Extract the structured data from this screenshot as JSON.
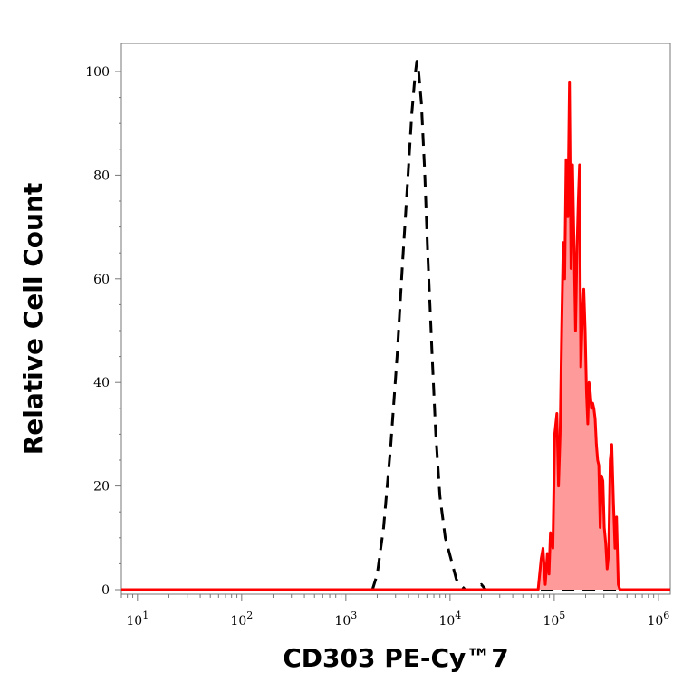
{
  "chart_data": {
    "type": "area",
    "xlabel": "CD303 PE-Cy™7",
    "ylabel": "Relative Cell Count",
    "x_scale": "log",
    "xlim": [
      7,
      1300000
    ],
    "ylim": [
      0,
      103
    ],
    "x_ticks": [
      {
        "value": 10,
        "base": "10",
        "exp": "1"
      },
      {
        "value": 100,
        "base": "10",
        "exp": "2"
      },
      {
        "value": 1000,
        "base": "10",
        "exp": "3"
      },
      {
        "value": 10000,
        "base": "10",
        "exp": "4"
      },
      {
        "value": 100000,
        "base": "10",
        "exp": "5"
      },
      {
        "value": 1000000,
        "base": "10",
        "exp": "6"
      }
    ],
    "y_ticks": [
      0,
      20,
      40,
      60,
      80,
      100
    ],
    "grid": false,
    "legend": "none",
    "series": [
      {
        "style": "dashed",
        "color": "#000000",
        "fill": "none",
        "x": [
          7,
          1800,
          2000,
          2300,
          2700,
          3100,
          3500,
          3900,
          4300,
          4600,
          4800,
          5000,
          5300,
          5700,
          6100,
          6700,
          7300,
          8000,
          9000,
          10500,
          11500,
          12500,
          14000,
          17000,
          20000,
          22000,
          1300000
        ],
        "y": [
          0,
          0,
          3,
          12,
          28,
          45,
          63,
          78,
          92,
          99,
          102,
          100,
          94,
          81,
          65,
          46,
          30,
          18,
          10,
          5,
          2,
          1,
          0,
          0,
          1,
          0,
          0
        ]
      },
      {
        "style": "solid",
        "color": "#ff0000",
        "fill": "#ff9a9a",
        "x": [
          7,
          70000,
          75000,
          78000,
          82000,
          86000,
          89000,
          92000,
          97000,
          101000,
          106000,
          110000,
          114000,
          118000,
          122000,
          126000,
          130000,
          135000,
          140000,
          145000,
          150000,
          155000,
          160000,
          165000,
          170000,
          175000,
          180000,
          186000,
          192000,
          198000,
          204000,
          210000,
          216000,
          222000,
          228000,
          234000,
          240000,
          247000,
          254000,
          261000,
          268000,
          276000,
          284000,
          293000,
          302000,
          312000,
          322000,
          333000,
          345000,
          357000,
          370000,
          383000,
          397000,
          412000,
          427000,
          443000,
          460000,
          1300000
        ],
        "y": [
          0,
          0,
          6,
          8,
          1,
          7,
          3,
          11,
          8,
          30,
          34,
          20,
          30,
          50,
          67,
          60,
          83,
          72,
          98,
          62,
          82,
          66,
          50,
          65,
          75,
          82,
          43,
          52,
          58,
          50,
          38,
          32,
          40,
          38,
          35,
          36,
          35,
          33,
          28,
          25,
          24,
          12,
          22,
          21,
          12,
          9,
          4,
          7,
          25,
          28,
          17,
          8,
          14,
          1,
          0,
          0,
          0,
          0
        ]
      }
    ]
  }
}
